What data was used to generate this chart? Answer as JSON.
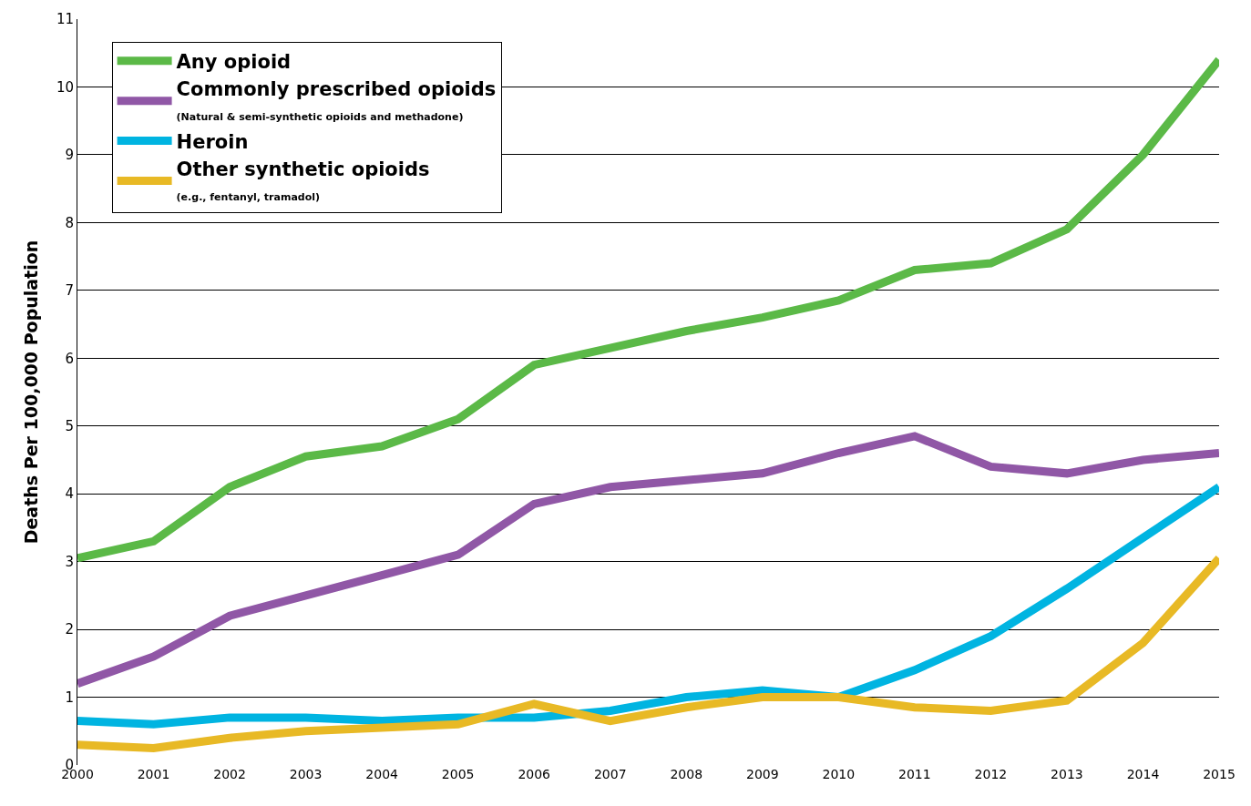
{
  "chart_data": {
    "type": "line",
    "ylabel": "Deaths Per 100,000 Population",
    "x": [
      2000,
      2001,
      2002,
      2003,
      2004,
      2005,
      2006,
      2007,
      2008,
      2009,
      2010,
      2011,
      2012,
      2013,
      2014,
      2015
    ],
    "series": [
      {
        "name": "Any opioid",
        "color": "#5bb947",
        "values": [
          3.05,
          3.3,
          4.1,
          4.55,
          4.7,
          5.1,
          5.9,
          6.15,
          6.4,
          6.6,
          6.85,
          7.3,
          7.4,
          7.9,
          9.0,
          10.4
        ]
      },
      {
        "name": "Commonly prescribed opioids\n(Natural & semi-synthetic opioids and methadone)",
        "color": "#9057a6",
        "values": [
          1.2,
          1.6,
          2.2,
          2.5,
          2.8,
          3.1,
          3.85,
          4.1,
          4.2,
          4.3,
          4.6,
          4.85,
          4.4,
          4.3,
          4.5,
          4.6
        ]
      },
      {
        "name": "Heroin",
        "color": "#00b4e1",
        "values": [
          0.65,
          0.6,
          0.7,
          0.7,
          0.65,
          0.7,
          0.7,
          0.8,
          1.0,
          1.1,
          1.0,
          1.4,
          1.9,
          2.6,
          3.35,
          4.1
        ]
      },
      {
        "name": "Other synthetic opioids\n(e.g., fentanyl, tramadol)",
        "color": "#e8b925",
        "values": [
          0.3,
          0.25,
          0.4,
          0.5,
          0.55,
          0.6,
          0.9,
          0.65,
          0.85,
          1.0,
          1.0,
          0.85,
          0.8,
          0.95,
          1.8,
          3.05
        ]
      }
    ],
    "xlim": [
      2000,
      2015
    ],
    "xticks": [
      2000,
      2001,
      2002,
      2003,
      2004,
      2005,
      2006,
      2007,
      2008,
      2009,
      2010,
      2011,
      2012,
      2013,
      2014,
      2015
    ],
    "ylim": [
      0,
      11
    ],
    "yticks": [
      0,
      1,
      2,
      3,
      4,
      5,
      6,
      7,
      8,
      9,
      10,
      11
    ],
    "grid": "y",
    "legend": "top left",
    "marker": "none",
    "line_style": "solid"
  }
}
